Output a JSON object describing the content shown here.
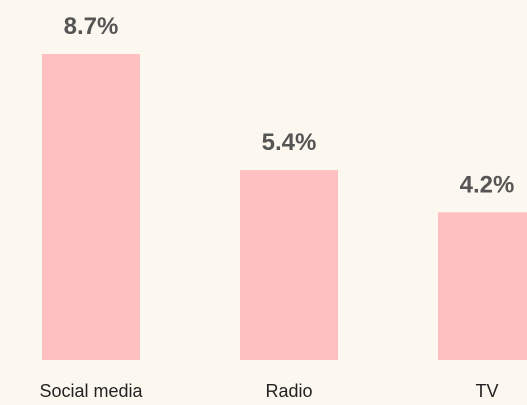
{
  "chart_data": {
    "type": "bar",
    "categories": [
      "Social media",
      "Radio",
      "TV"
    ],
    "values": [
      8.7,
      5.4,
      4.2
    ],
    "value_labels": [
      "8.7%",
      "5.4%",
      "4.2%"
    ],
    "color": "#ffc0c0"
  }
}
